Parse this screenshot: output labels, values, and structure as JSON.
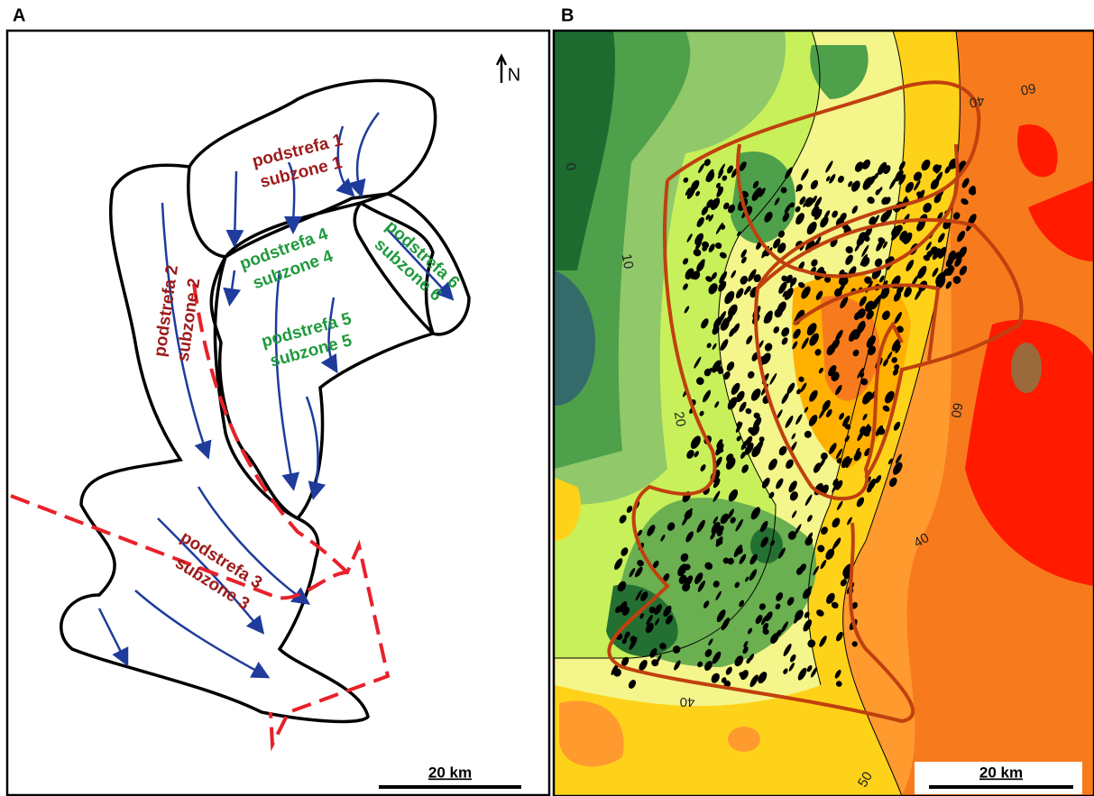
{
  "panel_a": {
    "label": "A",
    "north": "N",
    "scale": "20 km",
    "zones": [
      {
        "name": "podstrefa 1",
        "sub": "subzone 1"
      },
      {
        "name": "podstrefa 2",
        "sub": "subzone 2"
      },
      {
        "name": "podstrefa 3",
        "sub": "subzone 3"
      },
      {
        "name": "podstrefa 4",
        "sub": "subzone 4"
      },
      {
        "name": "podstrefa 5",
        "sub": "subzone 5"
      },
      {
        "name": "podstrefa 6",
        "sub": "subzone 6"
      }
    ]
  },
  "panel_b": {
    "label": "B",
    "scale": "20 km",
    "contour_labels": [
      0,
      10,
      20,
      40,
      60,
      60,
      40,
      40,
      50
    ]
  }
}
